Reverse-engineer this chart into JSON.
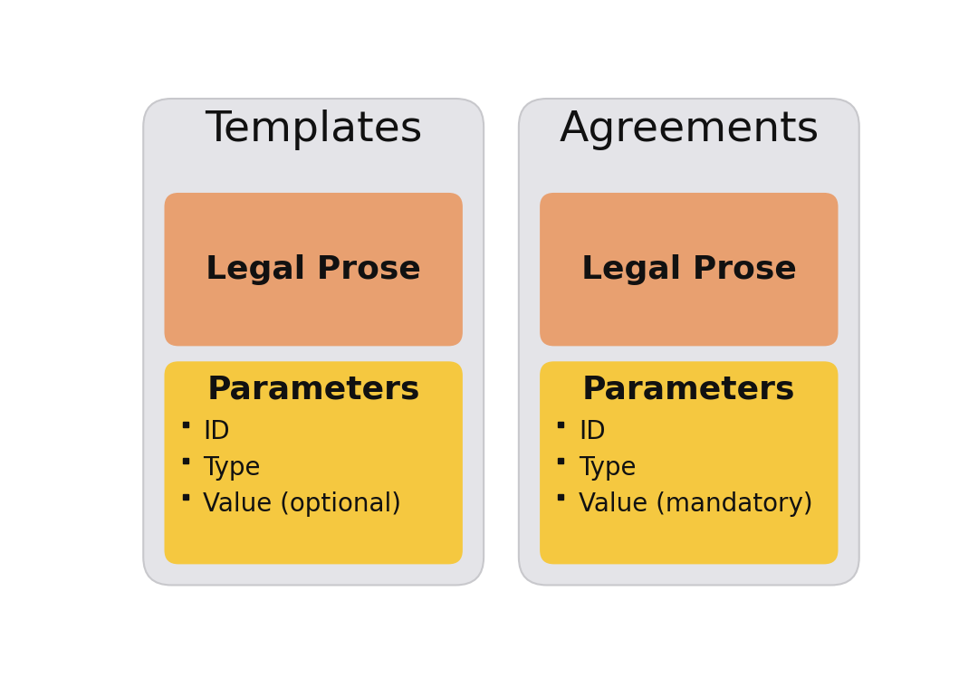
{
  "background_color": "#ffffff",
  "outer_box_color": "#e4e4e8",
  "outer_box_edge_color": "#c8c8cc",
  "legal_prose_color": "#e8a070",
  "parameters_color": "#f5c840",
  "text_color": "#111111",
  "panels": [
    {
      "title": "Templates",
      "legal_prose_label": "Legal Prose",
      "parameters_label": "Parameters",
      "bullet_items": [
        "ID",
        "Type",
        "Value (optional)"
      ]
    },
    {
      "title": "Agreements",
      "legal_prose_label": "Legal Prose",
      "parameters_label": "Parameters",
      "bullet_items": [
        "ID",
        "Type",
        "Value (mandatory)"
      ]
    }
  ],
  "title_fontsize": 34,
  "inner_title_fontsize": 26,
  "bullet_fontsize": 20,
  "fig_width": 10.8,
  "fig_height": 7.48
}
